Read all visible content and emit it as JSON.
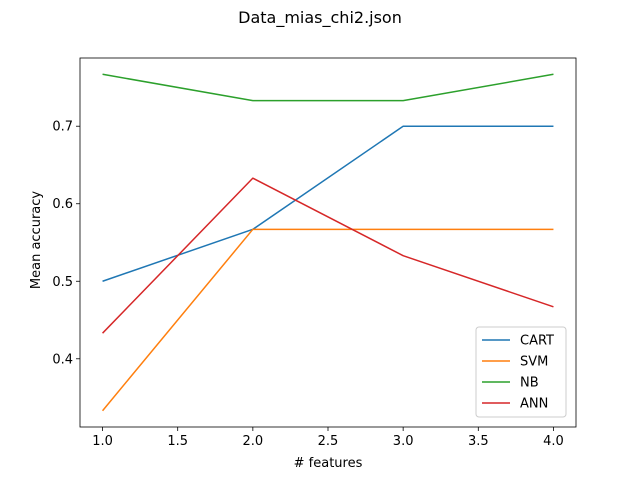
{
  "chart_data": {
    "type": "line",
    "title": "Data_mias_chi2.json",
    "xlabel": "# features",
    "ylabel": "Mean accuracy",
    "x": [
      1.0,
      2.0,
      3.0,
      4.0
    ],
    "xlim": [
      0.85,
      4.15
    ],
    "ylim": [
      0.312,
      0.788
    ],
    "xticks": [
      1.0,
      1.5,
      2.0,
      2.5,
      3.0,
      3.5,
      4.0
    ],
    "xtick_labels": [
      "1.0",
      "1.5",
      "2.0",
      "2.5",
      "3.0",
      "3.5",
      "4.0"
    ],
    "yticks": [
      0.4,
      0.5,
      0.6,
      0.7
    ],
    "ytick_labels": [
      "0.4",
      "0.5",
      "0.6",
      "0.7"
    ],
    "grid": false,
    "legend_position": "lower-right",
    "series": [
      {
        "name": "CART",
        "color": "#1f77b4",
        "values": [
          0.5,
          0.567,
          0.7,
          0.7
        ]
      },
      {
        "name": "SVM",
        "color": "#ff7f0e",
        "values": [
          0.333,
          0.567,
          0.567,
          0.567
        ]
      },
      {
        "name": "NB",
        "color": "#2ca02c",
        "values": [
          0.767,
          0.733,
          0.733,
          0.767
        ]
      },
      {
        "name": "ANN",
        "color": "#d62728",
        "values": [
          0.433,
          0.633,
          0.533,
          0.467
        ]
      }
    ]
  }
}
